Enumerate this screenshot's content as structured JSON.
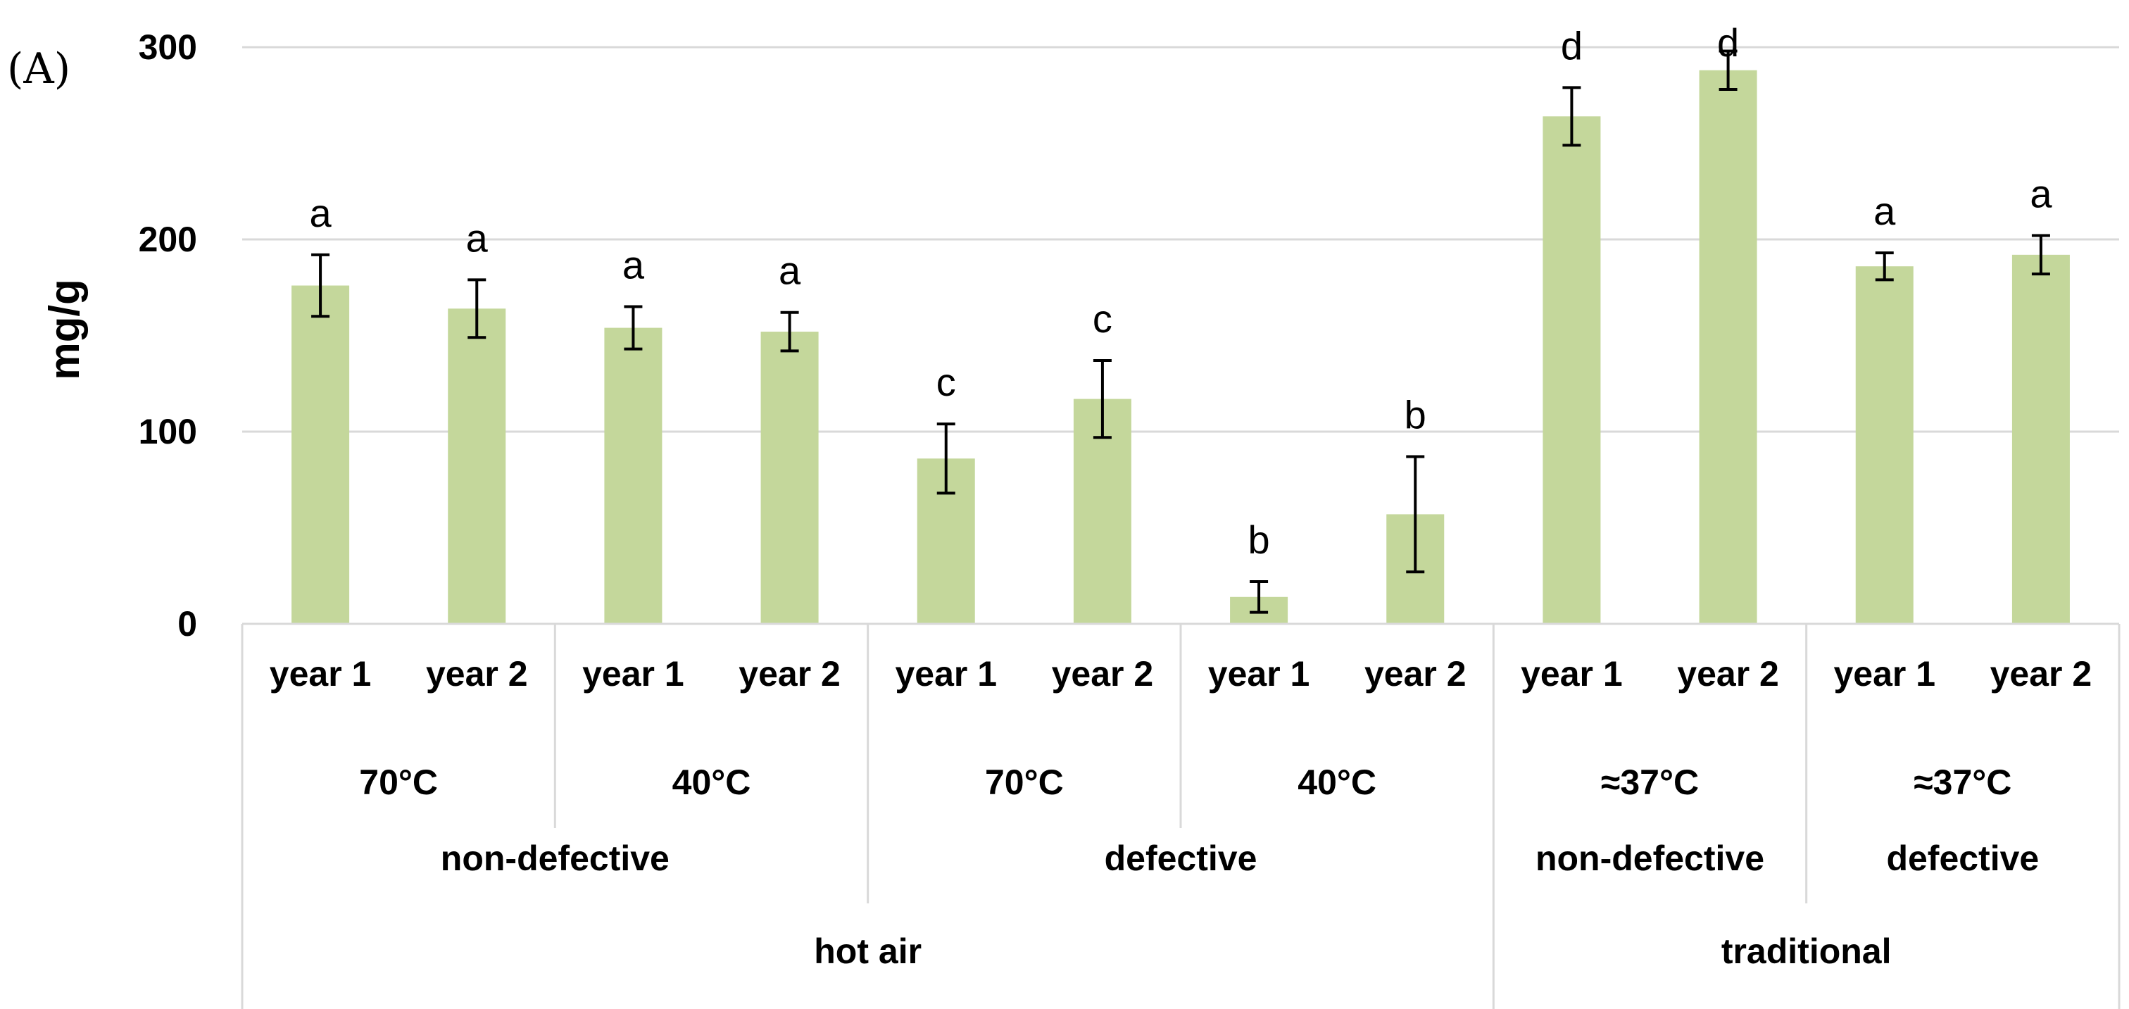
{
  "panel_label": "(A)",
  "colors": {
    "bar": "#c4d79b",
    "grid": "#d9d9d9",
    "error": "#000000",
    "axis": "#d9d9d9"
  },
  "chart_data": {
    "type": "bar",
    "title": "",
    "ylabel": "mg/g",
    "xlabel": "",
    "ylim": [
      0,
      300
    ],
    "yticks": [
      0,
      100,
      200,
      300
    ],
    "grid": true,
    "categories": [
      "year 1",
      "year 2",
      "year 1",
      "year 2",
      "year 1",
      "year 2",
      "year 1",
      "year 2",
      "year 1",
      "year 2",
      "year 1",
      "year 2"
    ],
    "values": [
      176,
      164,
      154,
      152,
      86,
      117,
      14,
      57,
      264,
      288,
      186,
      192
    ],
    "errors": [
      16,
      15,
      11,
      10,
      18,
      20,
      8,
      30,
      15,
      10,
      7,
      10
    ],
    "significance": [
      "a",
      "a",
      "a",
      "a",
      "c",
      "c",
      "b",
      "b",
      "d",
      "d",
      "a",
      "a"
    ],
    "group_levels": [
      [
        {
          "label": "70°C",
          "span": 2
        },
        {
          "label": "40°C",
          "span": 2
        },
        {
          "label": "70°C",
          "span": 2
        },
        {
          "label": "40°C",
          "span": 2
        },
        {
          "label": "≈37°C",
          "span": 2
        },
        {
          "label": "≈37°C",
          "span": 2
        }
      ],
      [
        {
          "label": "non-defective",
          "span": 4
        },
        {
          "label": "defective",
          "span": 4
        },
        {
          "label": "non-defective",
          "span": 2
        },
        {
          "label": "defective",
          "span": 2
        }
      ],
      [
        {
          "label": "hot air",
          "span": 8
        },
        {
          "label": "traditional",
          "span": 4
        }
      ]
    ]
  }
}
